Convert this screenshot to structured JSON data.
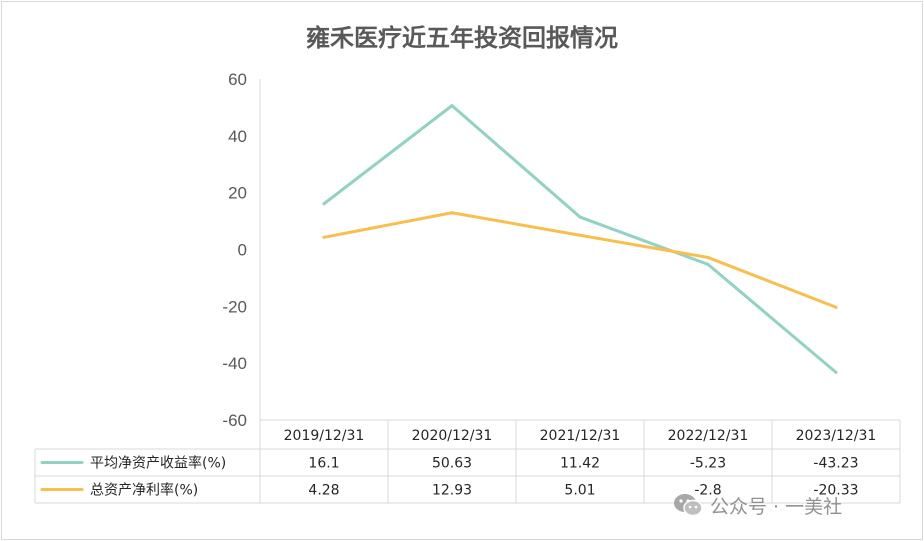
{
  "chart_data": {
    "type": "line",
    "title": "雍禾医疗近五年投资回报情况",
    "categories": [
      "2019/12/31",
      "2020/12/31",
      "2021/12/31",
      "2022/12/31",
      "2023/12/31"
    ],
    "series": [
      {
        "name": "平均净资产收益率(%)",
        "values": [
          16.1,
          50.63,
          11.42,
          -5.23,
          -43.23
        ],
        "labels": [
          "16.1",
          "50.63",
          "11.42",
          "-5.23",
          "-43.23"
        ],
        "color": "#8fd3c2"
      },
      {
        "name": "总资产净利率(%)",
        "values": [
          4.28,
          12.93,
          5.01,
          -2.8,
          -20.33
        ],
        "labels": [
          "4.28",
          "12.93",
          "5.01",
          "-2.8",
          "-20.33"
        ],
        "color": "#f8bf4e"
      }
    ],
    "yticks": [
      "60",
      "40",
      "20",
      "0",
      "-20",
      "-40",
      "-60"
    ],
    "ylim": [
      -60,
      60
    ],
    "grid": false,
    "legend": "data-table"
  },
  "watermark": {
    "text": "公众号 · 一美社",
    "icon": "wechat-icon"
  }
}
